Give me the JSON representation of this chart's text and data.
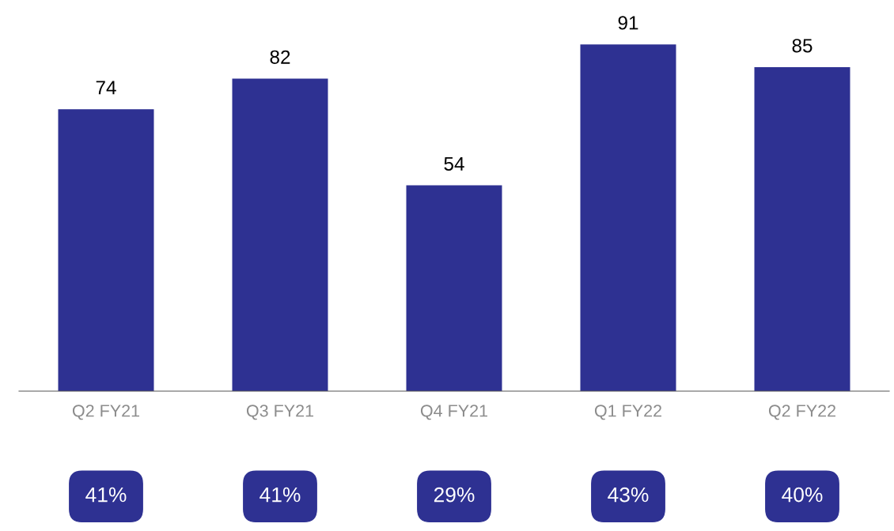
{
  "chart_data": {
    "type": "bar",
    "categories": [
      "Q2 FY21",
      "Q3 FY21",
      "Q4 FY21",
      "Q1 FY22",
      "Q2 FY22"
    ],
    "values": [
      74,
      82,
      54,
      91,
      85
    ],
    "color": "#2e3192",
    "data_labels": true,
    "annotations": [
      "41%",
      "41%",
      "29%",
      "43%",
      "40%"
    ]
  }
}
